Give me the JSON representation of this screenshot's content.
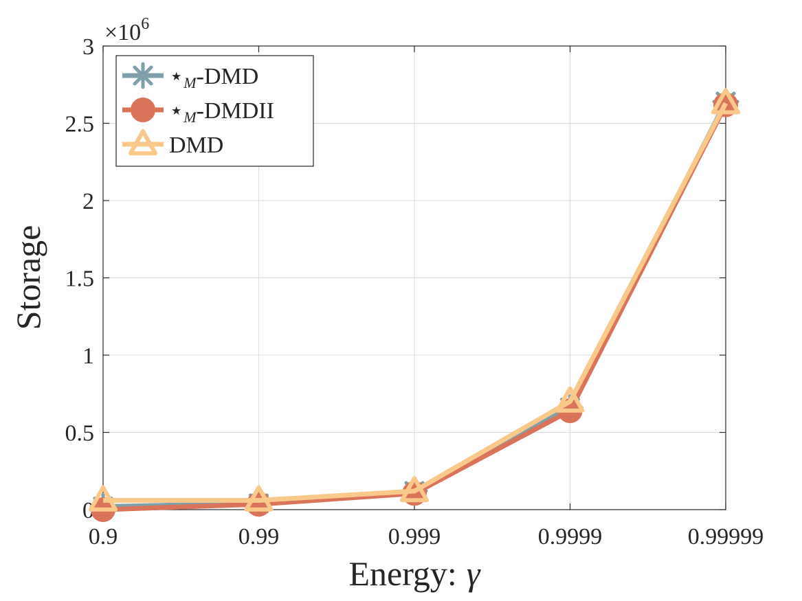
{
  "chart_data": {
    "type": "line",
    "title": "",
    "xlabel": "Energy:",
    "xlabel_symbol": "γ",
    "ylabel": "Storage",
    "y_multiplier_base": "×10",
    "y_multiplier_exp": "6",
    "categories": [
      "0.9",
      "0.99",
      "0.999",
      "0.9999",
      "0.99999"
    ],
    "ylim": [
      0,
      3
    ],
    "yticks": [
      "0",
      "0.5",
      "1",
      "1.5",
      "2",
      "2.5",
      "3"
    ],
    "ytick_values": [
      0,
      0.5,
      1,
      1.5,
      2,
      2.5,
      3
    ],
    "grid": true,
    "legend_position": "top-left",
    "series": [
      {
        "name": "-DMD",
        "legend_prefix": "⋆",
        "legend_sub": "M",
        "marker": "asterisk",
        "color": "#7fa0ab",
        "values": [
          0.02,
          0.04,
          0.12,
          0.66,
          2.64
        ]
      },
      {
        "name": "-DMDII",
        "legend_prefix": "⋆",
        "legend_sub": "M",
        "marker": "circle",
        "color": "#d9735a",
        "values": [
          0.0,
          0.035,
          0.105,
          0.64,
          2.62
        ]
      },
      {
        "name": "DMD",
        "legend_prefix": "",
        "legend_sub": "",
        "marker": "triangle",
        "color": "#f8c98a",
        "values": [
          0.06,
          0.06,
          0.12,
          0.7,
          2.63
        ]
      }
    ]
  }
}
